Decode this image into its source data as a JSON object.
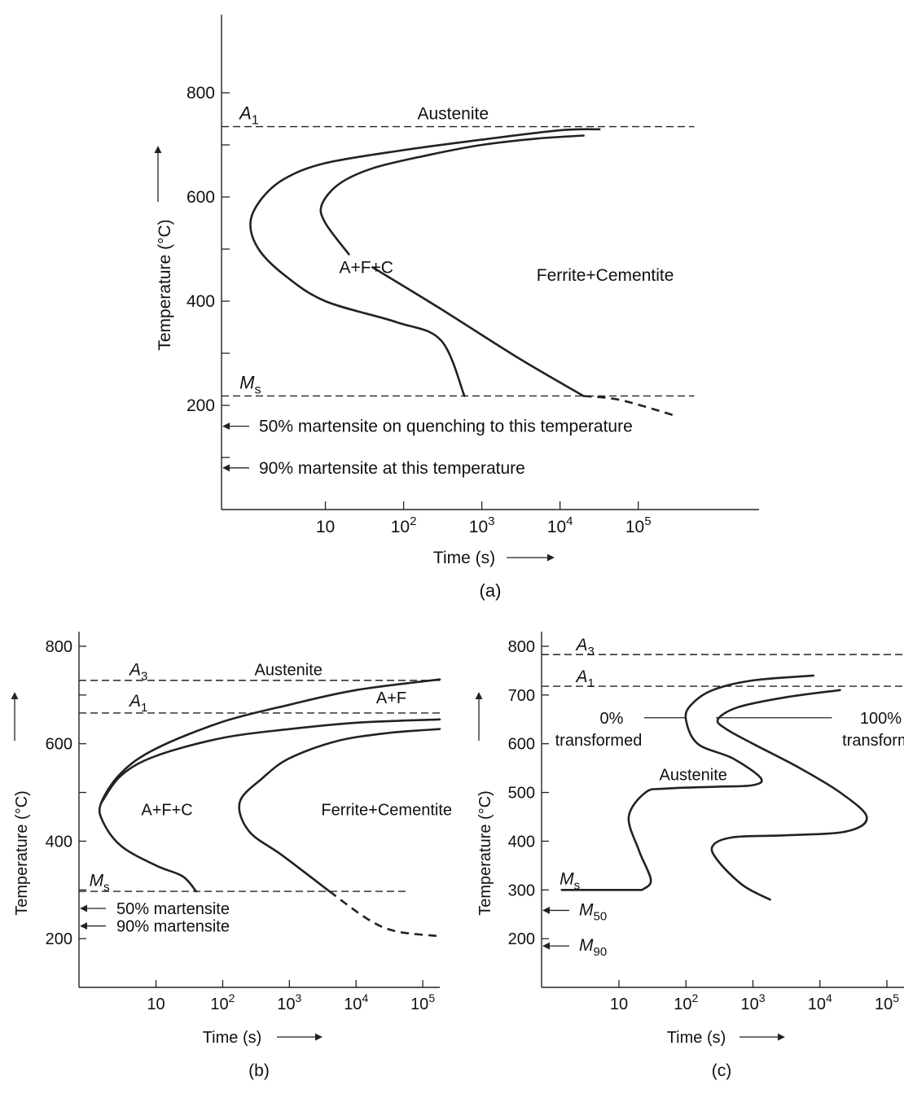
{
  "chart_data": [
    {
      "id": "a",
      "type": "line",
      "caption": "(a)",
      "xlabel": "Time (s)",
      "ylabel": "Temperature (°C)",
      "x_scale": "log",
      "xlim": [
        0.47,
        3500000
      ],
      "ylim": [
        0,
        950
      ],
      "x_ticks": [
        {
          "value": 10,
          "base": "10",
          "exp": ""
        },
        {
          "value": 100,
          "base": "10",
          "exp": "2"
        },
        {
          "value": 1000,
          "base": "10",
          "exp": "3"
        },
        {
          "value": 10000,
          "base": "10",
          "exp": "4"
        },
        {
          "value": 100000,
          "base": "10",
          "exp": "5"
        }
      ],
      "y_ticks": [
        100,
        200,
        300,
        400,
        500,
        600,
        700,
        800
      ],
      "y_tick_labels": [
        "",
        "200",
        "",
        "400",
        "",
        "600",
        "",
        "800"
      ],
      "ref_lines": [
        {
          "name": "A",
          "sub": "1",
          "y": 735,
          "x_end": 520000,
          "label_x": 0.8,
          "label_y": 760
        },
        {
          "name": "M",
          "sub": "s",
          "y": 218,
          "x_end": 520000,
          "label_x": 0.8,
          "label_y": 243
        }
      ],
      "series": [
        {
          "name": "",
          "style": "solid",
          "points": [
            [
              32000,
              730
            ],
            [
              10000,
              728
            ],
            [
              1000,
              710
            ],
            [
              100,
              690
            ],
            [
              10,
              665
            ],
            [
              3,
              635
            ],
            [
              1.5,
              595
            ],
            [
              1.1,
              550
            ],
            [
              1.4,
              500
            ],
            [
              3,
              450
            ],
            [
              10,
              400
            ],
            [
              80,
              360
            ],
            [
              300,
              325
            ],
            [
              600,
              218
            ]
          ]
        },
        {
          "name": "",
          "style": "solid",
          "points": [
            [
              20000,
              718
            ],
            [
              5000,
              712
            ],
            [
              1000,
              700
            ],
            [
              200,
              680
            ],
            [
              40,
              655
            ],
            [
              15,
              625
            ],
            [
              9,
              585
            ],
            [
              10,
              550
            ],
            [
              20,
              490
            ]
          ]
        },
        {
          "name": "",
          "style": "solid",
          "points": [
            [
              40,
              465
            ],
            [
              300,
              385
            ],
            [
              3000,
              290
            ],
            [
              20000,
              218
            ]
          ]
        },
        {
          "name": "",
          "style": "dashed",
          "points": [
            [
              20000,
              218
            ],
            [
              60000,
              210
            ],
            [
              300000,
              180
            ]
          ]
        }
      ],
      "annotations": [
        {
          "text": "Austenite",
          "x": 150,
          "y": 760
        },
        {
          "text": "A+F+C",
          "x": 15,
          "y": 465
        },
        {
          "text": "Ferrite+Cementite",
          "x": 5000,
          "y": 450
        }
      ],
      "arrow_notes": [
        {
          "text": "50% martensite on quenching to this temperature",
          "y": 160
        },
        {
          "text": "90% martensite at this temperature",
          "y": 80
        }
      ]
    },
    {
      "id": "b",
      "type": "line",
      "caption": "(b)",
      "xlabel": "Time (s)",
      "ylabel": "Temperature (°C)",
      "x_scale": "log",
      "xlim": [
        0.7,
        180000
      ],
      "ylim": [
        100,
        830
      ],
      "x_ticks": [
        {
          "value": 10,
          "base": "10",
          "exp": ""
        },
        {
          "value": 100,
          "base": "10",
          "exp": "2"
        },
        {
          "value": 1000,
          "base": "10",
          "exp": "3"
        },
        {
          "value": 10000,
          "base": "10",
          "exp": "4"
        },
        {
          "value": 100000,
          "base": "10",
          "exp": "5"
        }
      ],
      "y_ticks": [
        200,
        300,
        400,
        500,
        600,
        700,
        800
      ],
      "y_tick_labels": [
        "200",
        "",
        "400",
        "",
        "600",
        "",
        "800"
      ],
      "ref_lines": [
        {
          "name": "A",
          "sub": "3",
          "y": 730,
          "x_end": 180000,
          "label_x": 4,
          "label_y": 752
        },
        {
          "name": "A",
          "sub": "1",
          "y": 663,
          "x_end": 180000,
          "label_x": 4,
          "label_y": 688
        },
        {
          "name": "M",
          "sub": "s",
          "y": 297,
          "x_end": 60000,
          "label_x": 1,
          "label_y": 320
        }
      ],
      "series": [
        {
          "name": "",
          "style": "solid",
          "points": [
            [
              180000,
              732
            ],
            [
              10000,
              710
            ],
            [
              1000,
              680
            ],
            [
              100,
              645
            ],
            [
              10,
              590
            ],
            [
              3,
              540
            ],
            [
              1.5,
              478
            ],
            [
              1.6,
              440
            ],
            [
              3,
              390
            ],
            [
              10,
              350
            ],
            [
              25,
              328
            ],
            [
              40,
              297
            ]
          ]
        },
        {
          "name": "",
          "style": "solid",
          "points": [
            [
              180000,
              650
            ],
            [
              10000,
              643
            ],
            [
              1000,
              630
            ],
            [
              100,
              612
            ],
            [
              10,
              575
            ],
            [
              3,
              535
            ],
            [
              1.5,
              478
            ]
          ]
        },
        {
          "name": "",
          "style": "solid",
          "points": [
            [
              180000,
              630
            ],
            [
              30000,
              622
            ],
            [
              5000,
              605
            ],
            [
              1000,
              570
            ],
            [
              400,
              530
            ],
            [
              180,
              480
            ],
            [
              250,
              420
            ],
            [
              800,
              370
            ],
            [
              4000,
              297
            ]
          ]
        },
        {
          "name": "",
          "style": "dashed",
          "points": [
            [
              4000,
              297
            ],
            [
              15000,
              240
            ],
            [
              40000,
              215
            ],
            [
              180000,
              205
            ]
          ]
        }
      ],
      "annotations": [
        {
          "text": "Austenite",
          "x": 300,
          "y": 752
        },
        {
          "text": "A+F",
          "x": 20000,
          "y": 695
        },
        {
          "text": "A+F+C",
          "x": 6,
          "y": 465
        },
        {
          "text": "Ferrite+Cementite",
          "x": 3000,
          "y": 465
        }
      ],
      "arrow_notes": [
        {
          "text": "50% martensite",
          "y": 262
        },
        {
          "text": "90% martensite",
          "y": 226
        }
      ]
    },
    {
      "id": "c",
      "type": "line",
      "caption": "(c)",
      "xlabel": "Time (s)",
      "ylabel": "Temperature (°C)",
      "x_scale": "log",
      "xlim": [
        0.7,
        180000
      ],
      "ylim": [
        100,
        830
      ],
      "x_ticks": [
        {
          "value": 10,
          "base": "10",
          "exp": ""
        },
        {
          "value": 100,
          "base": "10",
          "exp": "2"
        },
        {
          "value": 1000,
          "base": "10",
          "exp": "3"
        },
        {
          "value": 10000,
          "base": "10",
          "exp": "4"
        },
        {
          "value": 100000,
          "base": "10",
          "exp": "5"
        }
      ],
      "y_ticks": [
        200,
        300,
        400,
        500,
        600,
        700,
        800
      ],
      "y_tick_labels": [
        "200",
        "300",
        "400",
        "500",
        "600",
        "700",
        "800"
      ],
      "ref_lines": [
        {
          "name": "A",
          "sub": "3",
          "y": 783,
          "x_end": 180000,
          "label_x": 2.3,
          "label_y": 803
        },
        {
          "name": "A",
          "sub": "1",
          "y": 718,
          "x_end": 180000,
          "label_x": 2.3,
          "label_y": 738
        }
      ],
      "ms_line": {
        "name": "M",
        "sub": "s",
        "y": 300,
        "x_start": 1.4,
        "x_end": 22,
        "label_x": 1.3,
        "label_y": 320
      },
      "series": [
        {
          "name": "",
          "style": "solid",
          "points": [
            [
              8000,
              740
            ],
            [
              1000,
              730
            ],
            [
              250,
              710
            ],
            [
              120,
              680
            ],
            [
              100,
              650
            ],
            [
              150,
              600
            ],
            [
              500,
              570
            ],
            [
              1300,
              530
            ],
            [
              1000,
              515
            ],
            [
              300,
              512
            ],
            [
              50,
              508
            ],
            [
              25,
              500
            ],
            [
              14,
              450
            ],
            [
              20,
              380
            ],
            [
              30,
              320
            ],
            [
              22,
              300
            ]
          ]
        },
        {
          "name": "",
          "style": "solid",
          "points": [
            [
              20000,
              710
            ],
            [
              3000,
              695
            ],
            [
              600,
              675
            ],
            [
              300,
              650
            ],
            [
              400,
              630
            ],
            [
              1000,
              600
            ],
            [
              5000,
              550
            ],
            [
              20000,
              500
            ],
            [
              50000,
              450
            ],
            [
              25000,
              420
            ],
            [
              3000,
              412
            ],
            [
              500,
              408
            ],
            [
              250,
              390
            ],
            [
              300,
              360
            ],
            [
              700,
              310
            ],
            [
              1800,
              280
            ]
          ]
        }
      ],
      "pointer_labels": [
        {
          "lines": [
            "0%",
            "transformed"
          ],
          "target_x": 100,
          "target_y": 650,
          "text_x": 18,
          "text_y": 650
        },
        {
          "lines": [
            "100%",
            "transformed"
          ],
          "target_x": 280,
          "target_y": 650,
          "text_x": 20000,
          "text_y": 650
        }
      ],
      "annotations": [
        {
          "text": "Austenite",
          "x": 40,
          "y": 537
        }
      ],
      "arrow_notes": [
        {
          "name": "M",
          "sub": "50",
          "y": 258
        },
        {
          "name": "M",
          "sub": "90",
          "y": 185
        }
      ]
    }
  ]
}
